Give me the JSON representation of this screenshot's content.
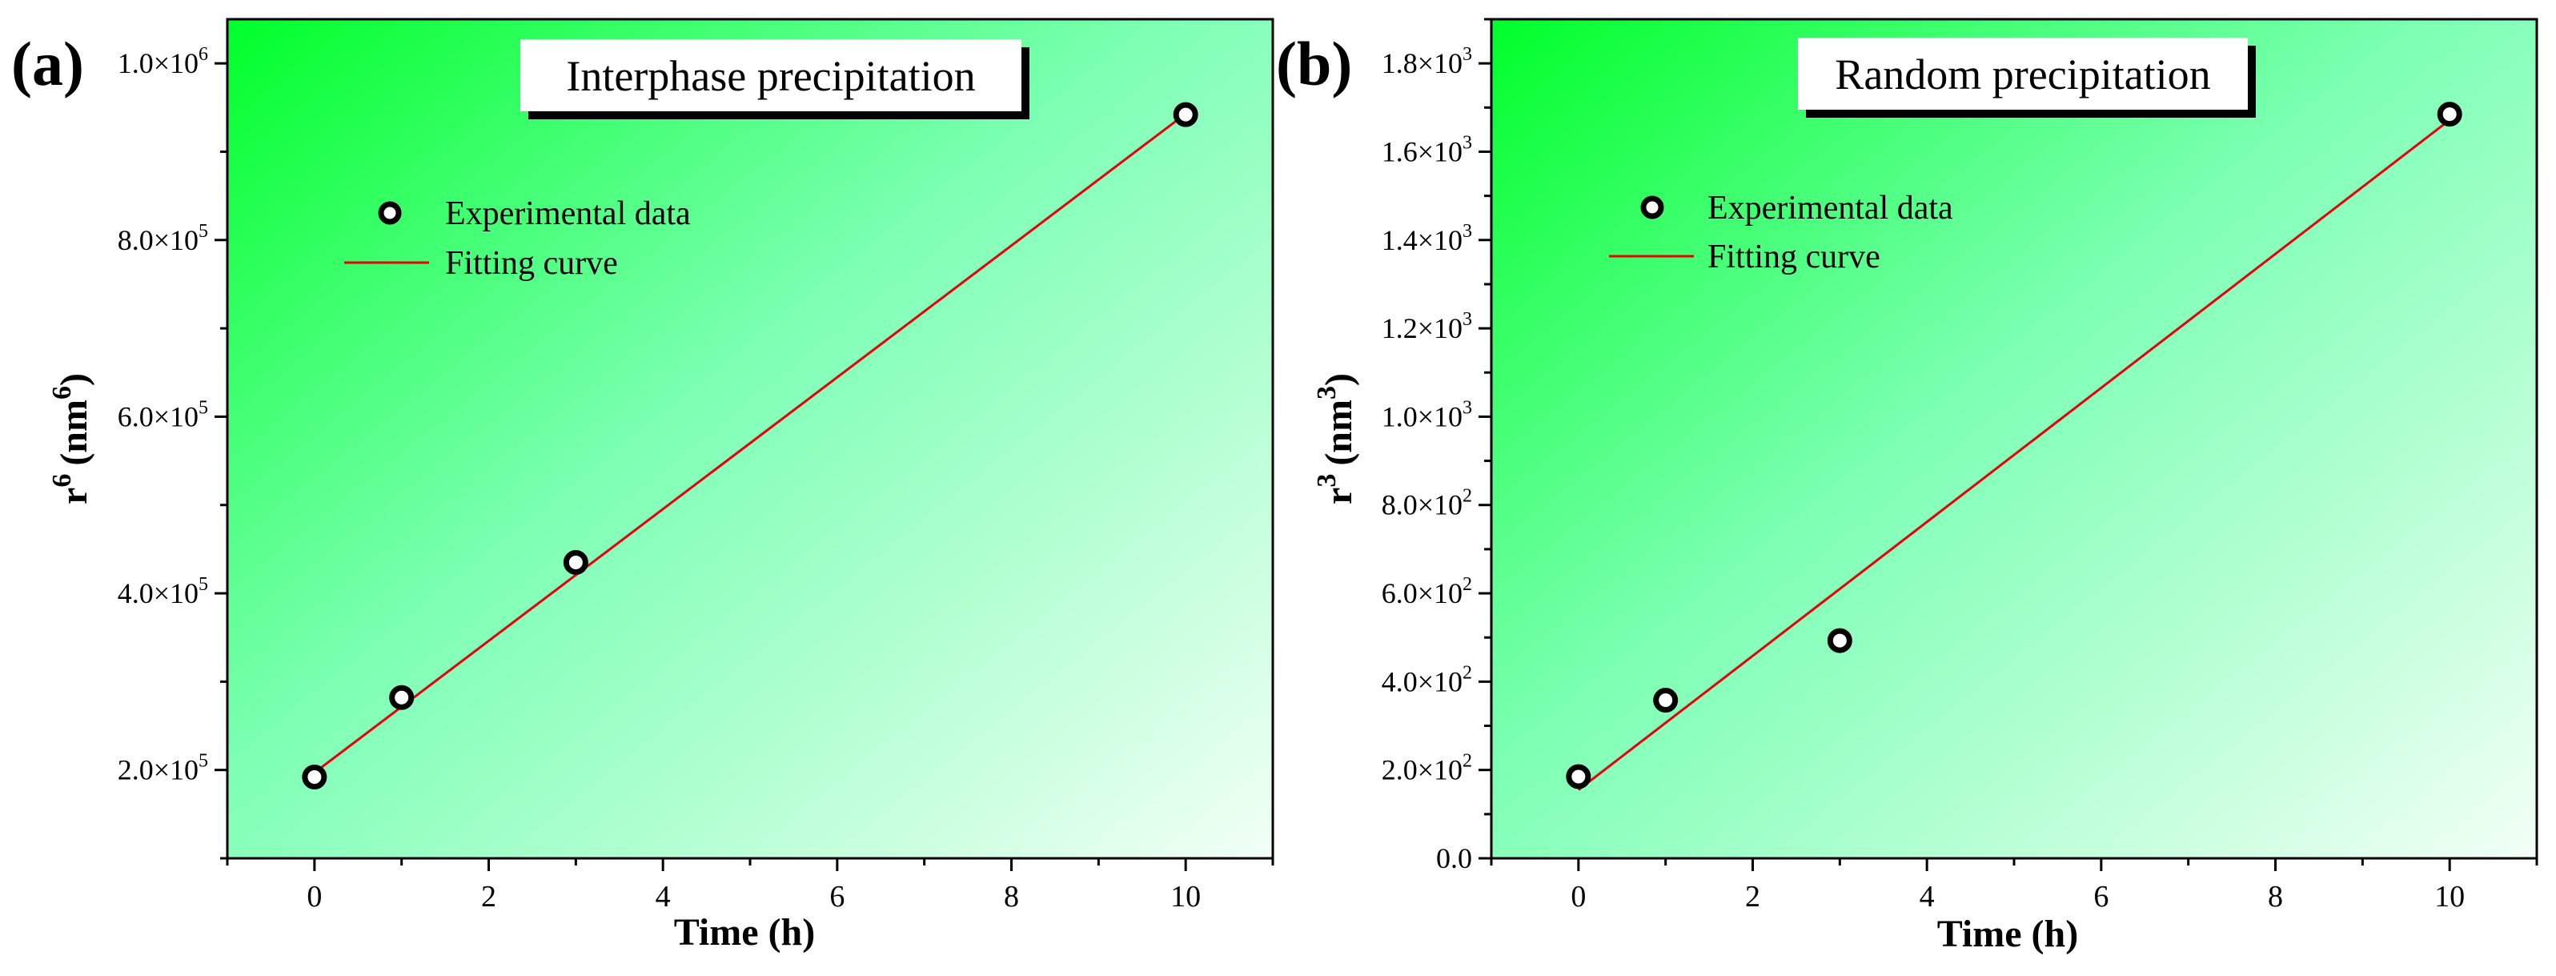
{
  "chart_data": [
    {
      "panel_label": "(a)",
      "type": "scatter",
      "title": "Interphase precipitation",
      "xlabel": "Time (h)",
      "ylabel_base": "r",
      "ylabel_sup": "6",
      "ylabel_unit": "(nm",
      "ylabel_unit_sup": "6",
      "ylabel_close": ")",
      "xlim": [
        -1,
        11
      ],
      "ylim": [
        100000,
        1050000
      ],
      "xticks": [
        0,
        2,
        4,
        6,
        8,
        10
      ],
      "xtick_labels": [
        "0",
        "2",
        "4",
        "6",
        "8",
        "10"
      ],
      "yticks": [
        {
          "value": 200000,
          "mantissa": "2.0×10",
          "exp": "5"
        },
        {
          "value": 400000,
          "mantissa": "4.0×10",
          "exp": "5"
        },
        {
          "value": 600000,
          "mantissa": "6.0×10",
          "exp": "5"
        },
        {
          "value": 800000,
          "mantissa": "8.0×10",
          "exp": "5"
        },
        {
          "value": 1000000,
          "mantissa": "1.0×10",
          "exp": "6"
        }
      ],
      "series": [
        {
          "name": "Experimental data",
          "kind": "points",
          "x": [
            0,
            1,
            3,
            10
          ],
          "y": [
            192000,
            282000,
            435000,
            942000
          ]
        },
        {
          "name": "Fitting curve",
          "kind": "line",
          "color": "#e8000b",
          "x": [
            0,
            10
          ],
          "y": [
            197000,
            943000
          ]
        }
      ],
      "legend_position": "upper-left"
    },
    {
      "panel_label": "(b)",
      "type": "scatter",
      "title": "Random precipitation",
      "xlabel": "Time (h)",
      "ylabel_base": "r",
      "ylabel_sup": "3",
      "ylabel_unit": "(nm",
      "ylabel_unit_sup": "3",
      "ylabel_close": ")",
      "xlim": [
        -1,
        11
      ],
      "ylim": [
        0,
        1900
      ],
      "xticks": [
        0,
        2,
        4,
        6,
        8,
        10
      ],
      "xtick_labels": [
        "0",
        "2",
        "4",
        "6",
        "8",
        "10"
      ],
      "yticks": [
        {
          "value": 0,
          "mantissa": "0.0",
          "exp": ""
        },
        {
          "value": 200,
          "mantissa": "2.0×10",
          "exp": "2"
        },
        {
          "value": 400,
          "mantissa": "4.0×10",
          "exp": "2"
        },
        {
          "value": 600,
          "mantissa": "6.0×10",
          "exp": "2"
        },
        {
          "value": 800,
          "mantissa": "8.0×10",
          "exp": "2"
        },
        {
          "value": 1000,
          "mantissa": "1.0×10",
          "exp": "3"
        },
        {
          "value": 1200,
          "mantissa": "1.2×10",
          "exp": "3"
        },
        {
          "value": 1400,
          "mantissa": "1.4×10",
          "exp": "3"
        },
        {
          "value": 1600,
          "mantissa": "1.6×10",
          "exp": "3"
        },
        {
          "value": 1800,
          "mantissa": "1.8×10",
          "exp": "3"
        }
      ],
      "series": [
        {
          "name": "Experimental data",
          "kind": "points",
          "x": [
            0,
            1,
            3,
            10
          ],
          "y": [
            185,
            358,
            493,
            1685
          ]
        },
        {
          "name": "Fitting curve",
          "kind": "line",
          "color": "#e8000b",
          "x": [
            0,
            10
          ],
          "y": [
            155,
            1672
          ]
        }
      ],
      "legend_position": "upper-left"
    }
  ],
  "colors": {
    "gradient_strong": "#00ff2a",
    "gradient_mid": "#7dffb4",
    "gradient_light": "#f2fff6",
    "fit_line": "#e8000b",
    "marker_fill": "#ffffff",
    "marker_edge": "#000000"
  }
}
